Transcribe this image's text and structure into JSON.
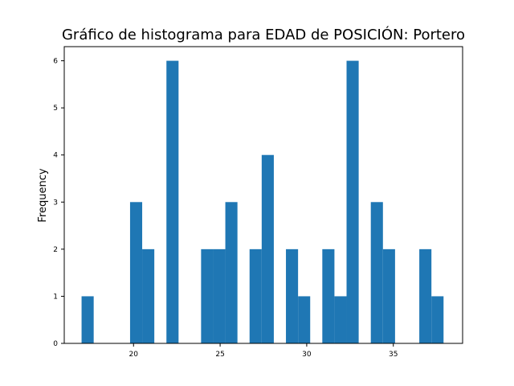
{
  "chart_data": {
    "type": "bar",
    "title": "Gráfico de histograma para EDAD de POSICIÓN: Portero",
    "xlabel": "",
    "ylabel": "Frequency",
    "xlim": [
      16.0,
      39.0
    ],
    "ylim": [
      0,
      6.3
    ],
    "xticks": [
      20,
      25,
      30,
      35
    ],
    "yticks": [
      0,
      1,
      2,
      3,
      4,
      5,
      6
    ],
    "grid": false,
    "bar_color": "#1f77b4",
    "bin_width": 0.7,
    "bins": [
      {
        "start": 17.0,
        "count": 1
      },
      {
        "start": 19.8,
        "count": 3
      },
      {
        "start": 20.5,
        "count": 2
      },
      {
        "start": 21.9,
        "count": 6
      },
      {
        "start": 23.9,
        "count": 2
      },
      {
        "start": 24.6,
        "count": 2
      },
      {
        "start": 25.3,
        "count": 3
      },
      {
        "start": 26.7,
        "count": 2
      },
      {
        "start": 27.4,
        "count": 4
      },
      {
        "start": 28.8,
        "count": 2
      },
      {
        "start": 29.5,
        "count": 1
      },
      {
        "start": 30.9,
        "count": 2
      },
      {
        "start": 31.6,
        "count": 1
      },
      {
        "start": 32.3,
        "count": 6
      },
      {
        "start": 33.7,
        "count": 3
      },
      {
        "start": 34.4,
        "count": 2
      },
      {
        "start": 36.5,
        "count": 2
      },
      {
        "start": 37.2,
        "count": 1
      }
    ]
  }
}
